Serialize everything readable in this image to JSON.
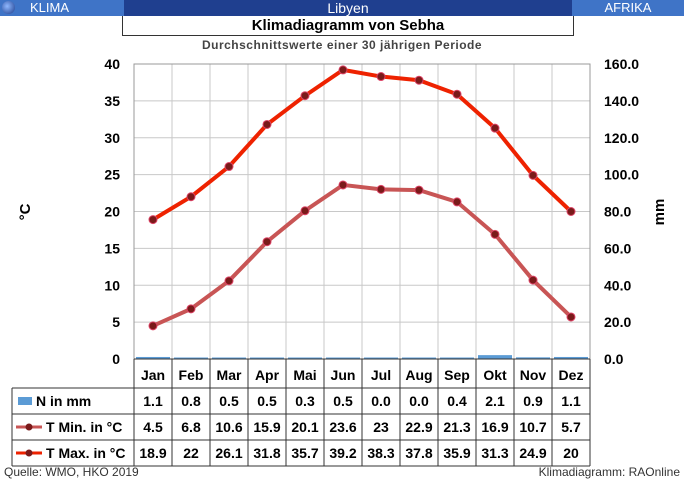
{
  "header": {
    "left_label": "KLIMA",
    "center_label": "Libyen",
    "right_label": "AFRIKA"
  },
  "footer": {
    "source": "Quelle:  WMO, HKO 2019",
    "credit": "Klimadiagramm:  RAOnline"
  },
  "chart_data": {
    "type": "line",
    "title": "Klimadiagramm von Sebha",
    "subtitle": "Durchschnittswerte einer 30 jährigen Periode",
    "ylabel": "°C",
    "y2label": "mm",
    "ylim": [
      0,
      40
    ],
    "y2lim": [
      0,
      160
    ],
    "yticks": [
      "0",
      "5",
      "10",
      "15",
      "20",
      "25",
      "30",
      "35",
      "40"
    ],
    "y2ticks": [
      "0.0",
      "20.0",
      "40.0",
      "60.0",
      "80.0",
      "100.0",
      "120.0",
      "140.0",
      "160.0"
    ],
    "grid": true,
    "categories": [
      "Jan",
      "Feb",
      "Mar",
      "Apr",
      "Mai",
      "Jun",
      "Jul",
      "Aug",
      "Sep",
      "Okt",
      "Nov",
      "Dez"
    ],
    "series": [
      {
        "name": "N in mm",
        "type": "bar",
        "axis": "right",
        "color": "#5b9bd5",
        "values": [
          1.1,
          0.8,
          0.5,
          0.5,
          0.3,
          0.5,
          0.0,
          0.0,
          0.4,
          2.1,
          0.9,
          1.1
        ],
        "labels": [
          "1.1",
          "0.8",
          "0.5",
          "0.5",
          "0.3",
          "0.5",
          "0.0",
          "0.0",
          "0.4",
          "2.1",
          "0.9",
          "1.1"
        ]
      },
      {
        "name": "T Min. in °C",
        "type": "line",
        "axis": "left",
        "color": "#c85555",
        "values": [
          4.5,
          6.8,
          10.6,
          15.9,
          20.1,
          23.6,
          23,
          22.9,
          21.3,
          16.9,
          10.7,
          5.7
        ],
        "labels": [
          "4.5",
          "6.8",
          "10.6",
          "15.9",
          "20.1",
          "23.6",
          "23",
          "22.9",
          "21.3",
          "16.9",
          "10.7",
          "5.7"
        ]
      },
      {
        "name": "T Max. in °C",
        "type": "line",
        "axis": "left",
        "color": "#ee2200",
        "values": [
          18.9,
          22,
          26.1,
          31.8,
          35.7,
          39.2,
          38.3,
          37.8,
          35.9,
          31.3,
          24.9,
          20
        ],
        "labels": [
          "18.9",
          "22",
          "26.1",
          "31.8",
          "35.7",
          "39.2",
          "38.3",
          "37.8",
          "35.9",
          "31.3",
          "24.9",
          "20"
        ]
      }
    ]
  }
}
